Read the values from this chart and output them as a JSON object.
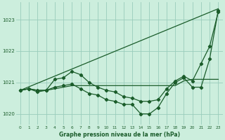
{
  "title": "Graphe pression niveau de la mer (hPa)",
  "bg_color": "#cceedd",
  "grid_color": "#99ccbb",
  "line_color": "#1a5c2a",
  "x_ticks": [
    0,
    1,
    2,
    3,
    4,
    5,
    6,
    7,
    8,
    9,
    10,
    11,
    12,
    13,
    14,
    15,
    16,
    17,
    18,
    19,
    20,
    21,
    22,
    23
  ],
  "y_ticks": [
    1020,
    1021,
    1022,
    1023
  ],
  "ylim": [
    1019.65,
    1023.55
  ],
  "xlim": [
    -0.5,
    23.5
  ],
  "series_diagonal": {
    "x": [
      0,
      23
    ],
    "y": [
      1020.75,
      1023.35
    ]
  },
  "series_flat": {
    "x": [
      0,
      1,
      2,
      3,
      4,
      5,
      6,
      7,
      8,
      9,
      10,
      11,
      12,
      13,
      14,
      15,
      16,
      17,
      18,
      19,
      20,
      21,
      22,
      23
    ],
    "y": [
      1020.75,
      1020.8,
      1020.75,
      1020.75,
      1020.8,
      1020.85,
      1020.9,
      1020.9,
      1020.9,
      1020.9,
      1020.9,
      1020.9,
      1020.9,
      1020.9,
      1020.9,
      1020.9,
      1020.9,
      1020.9,
      1020.9,
      1021.05,
      1021.1,
      1021.1,
      1021.1,
      1021.1
    ]
  },
  "series_with_peaks": {
    "x": [
      0,
      1,
      2,
      3,
      4,
      5,
      6,
      7,
      8,
      9,
      10,
      11,
      12,
      13,
      14,
      15,
      16,
      17,
      18,
      19,
      20,
      21,
      22,
      23
    ],
    "y": [
      1020.75,
      1020.8,
      1020.75,
      1020.75,
      1021.1,
      1021.15,
      1021.35,
      1021.25,
      1021.0,
      1020.85,
      1020.75,
      1020.7,
      1020.55,
      1020.5,
      1020.4,
      1020.4,
      1020.45,
      1020.8,
      1021.05,
      1021.2,
      1021.05,
      1021.6,
      1022.15,
      1023.25
    ]
  },
  "series_dip": {
    "x": [
      0,
      1,
      2,
      3,
      4,
      5,
      6,
      7,
      8,
      9,
      10,
      11,
      12,
      13,
      14,
      15,
      16,
      17,
      18,
      19,
      20,
      21,
      22,
      23
    ],
    "y": [
      1020.75,
      1020.8,
      1020.7,
      1020.75,
      1020.85,
      1020.9,
      1020.95,
      1020.8,
      1020.65,
      1020.6,
      1020.45,
      1020.4,
      1020.3,
      1020.3,
      1020.0,
      1020.0,
      1020.2,
      1020.65,
      1021.0,
      1021.15,
      1020.85,
      1020.85,
      1021.75,
      1023.3
    ]
  }
}
